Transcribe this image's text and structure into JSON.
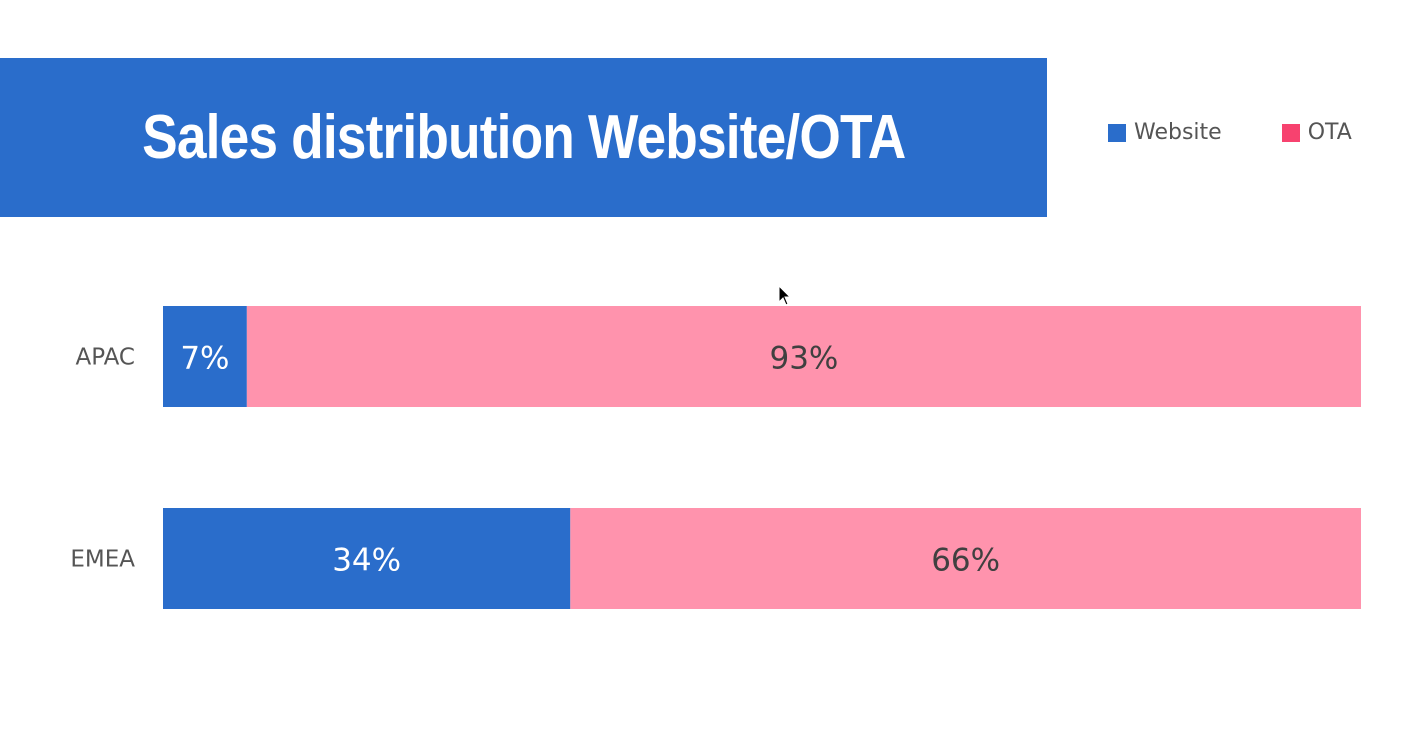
{
  "chart_data": {
    "type": "bar",
    "orientation": "horizontal",
    "stacked": true,
    "title": "Sales distribution Website/OTA",
    "categories": [
      "APAC",
      "EMEA"
    ],
    "series": [
      {
        "name": "Website",
        "values": [
          7,
          34
        ],
        "labels": [
          "7%",
          "34%"
        ],
        "color": "#2a6dcb",
        "label_color": "#ffffff"
      },
      {
        "name": "OTA",
        "values": [
          93,
          66
        ],
        "labels": [
          "93%",
          "66%"
        ],
        "color": "#ff93ad",
        "label_color": "#404040",
        "legend_color": "#f7426f"
      }
    ],
    "xlim": [
      0,
      100
    ],
    "grid": false,
    "legend_placement": "top-right"
  }
}
